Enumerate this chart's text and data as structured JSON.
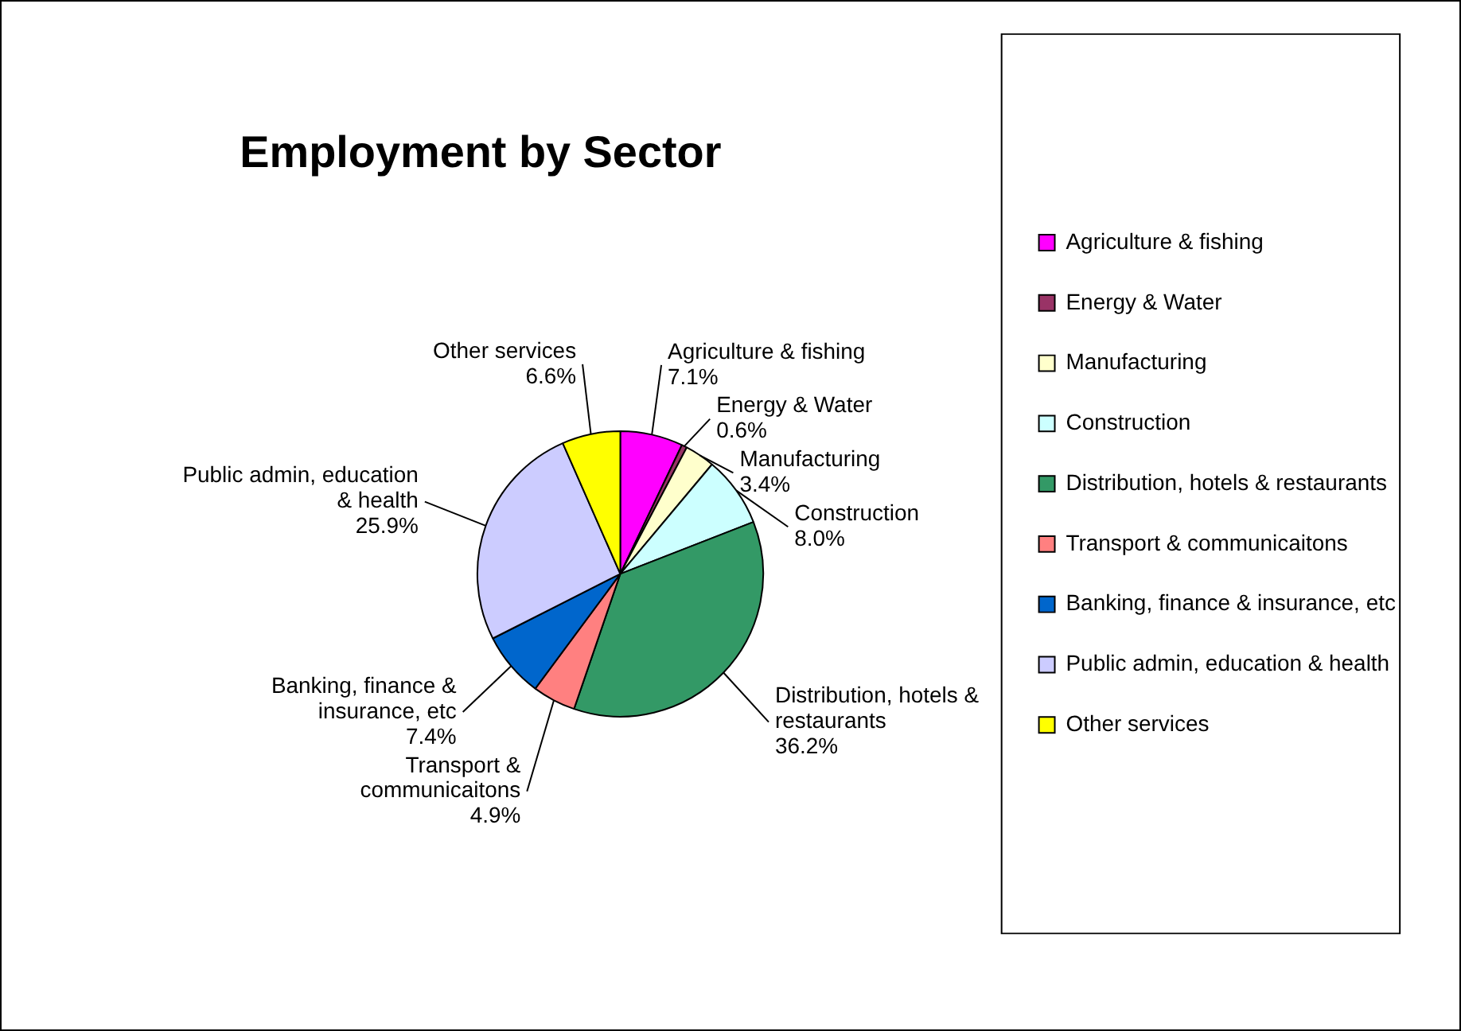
{
  "chart_data": {
    "type": "pie",
    "title": "Employment by Sector",
    "categories": [
      "Agriculture & fishing",
      "Energy & Water",
      "Manufacturing",
      "Construction",
      "Distribution, hotels & restaurants",
      "Transport & communicaitons",
      "Banking, finance & insurance, etc",
      "Public admin, education & health",
      "Other services"
    ],
    "values": [
      7.1,
      0.6,
      3.4,
      8.0,
      36.2,
      4.9,
      7.4,
      25.9,
      6.6
    ],
    "value_labels": [
      "7.1%",
      "0.6%",
      "3.4%",
      "8.0%",
      "36.2%",
      "4.9%",
      "7.4%",
      "25.9%",
      "6.6%"
    ],
    "colors": [
      "#ff00ff",
      "#993366",
      "#ffffcc",
      "#ccffff",
      "#339966",
      "#ff8080",
      "#0066cc",
      "#ccccff",
      "#ffff00"
    ],
    "legend": "right"
  }
}
